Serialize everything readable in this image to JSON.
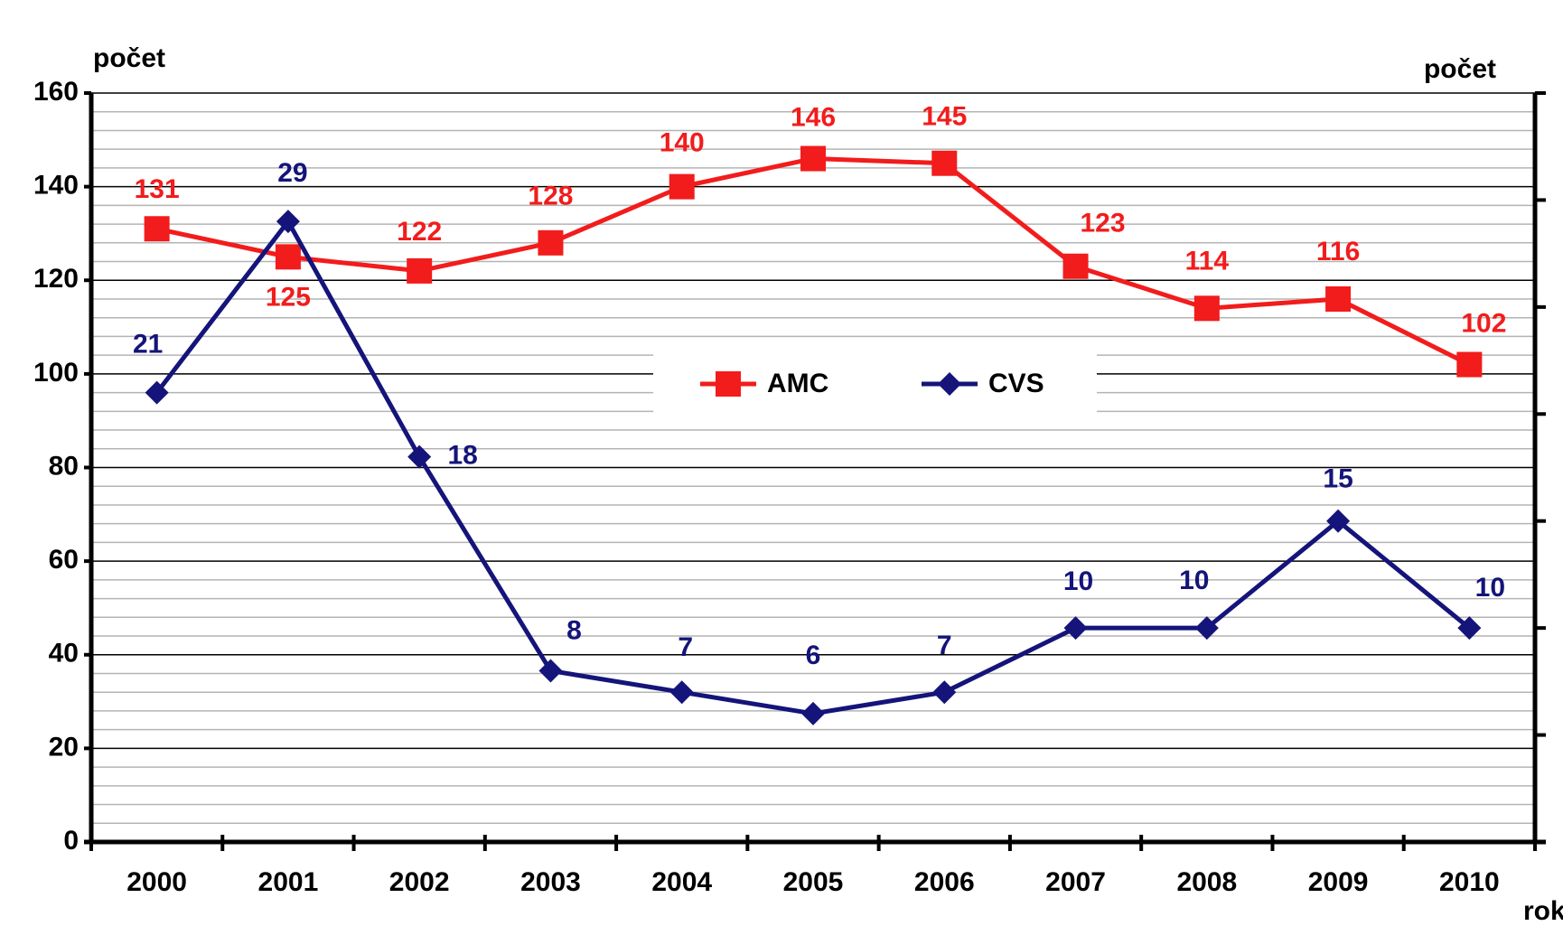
{
  "chart_data": {
    "type": "line",
    "y_label": "počet",
    "y2_label": "počet",
    "x_label": "rok",
    "categories": [
      "2000",
      "2001",
      "2002",
      "2003",
      "2004",
      "2005",
      "2006",
      "2007",
      "2008",
      "2009",
      "2010"
    ],
    "series": [
      {
        "name": "AMC",
        "color": "#f21c1c",
        "marker": "square",
        "values": [
          131,
          125,
          122,
          128,
          140,
          146,
          145,
          123,
          114,
          116,
          102
        ]
      },
      {
        "name": "CVS",
        "color": "#14147a",
        "marker": "diamond",
        "axis": "y2",
        "values": [
          21,
          29,
          18,
          8,
          7,
          6,
          7,
          10,
          10,
          15,
          10
        ]
      }
    ],
    "ylim": [
      0,
      160
    ],
    "yticks": [
      0,
      20,
      40,
      60,
      80,
      100,
      120,
      140,
      160
    ],
    "y2lim": [
      0,
      35
    ],
    "y2ticks": [
      0,
      5,
      10,
      15,
      20,
      25,
      30,
      35
    ],
    "grid": true,
    "legend": "center"
  }
}
